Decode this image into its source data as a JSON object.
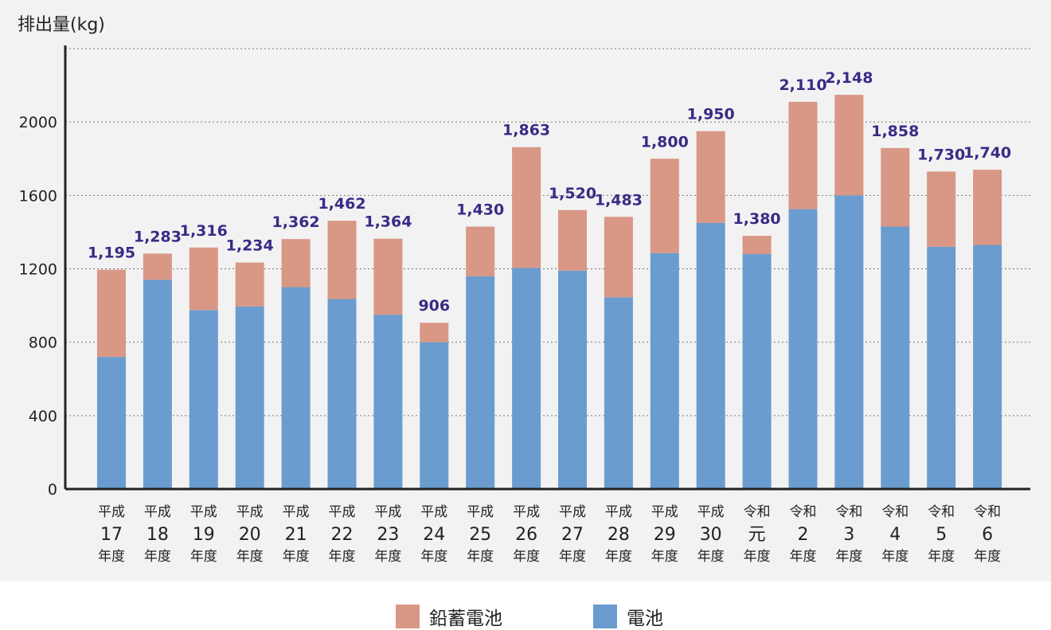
{
  "chart_data": {
    "type": "bar",
    "stacked": true,
    "ylabel": "排出量(kg)",
    "ylim": [
      0,
      2400
    ],
    "yticks": [
      0,
      400,
      800,
      1200,
      1600,
      2000
    ],
    "grid": true,
    "legend_position": "bottom",
    "categories": [
      {
        "line1": "平成",
        "line2": "17",
        "line3": "年度"
      },
      {
        "line1": "平成",
        "line2": "18",
        "line3": "年度"
      },
      {
        "line1": "平成",
        "line2": "19",
        "line3": "年度"
      },
      {
        "line1": "平成",
        "line2": "20",
        "line3": "年度"
      },
      {
        "line1": "平成",
        "line2": "21",
        "line3": "年度"
      },
      {
        "line1": "平成",
        "line2": "22",
        "line3": "年度"
      },
      {
        "line1": "平成",
        "line2": "23",
        "line3": "年度"
      },
      {
        "line1": "平成",
        "line2": "24",
        "line3": "年度"
      },
      {
        "line1": "平成",
        "line2": "25",
        "line3": "年度"
      },
      {
        "line1": "平成",
        "line2": "26",
        "line3": "年度"
      },
      {
        "line1": "平成",
        "line2": "27",
        "line3": "年度"
      },
      {
        "line1": "平成",
        "line2": "28",
        "line3": "年度"
      },
      {
        "line1": "平成",
        "line2": "29",
        "line3": "年度"
      },
      {
        "line1": "平成",
        "line2": "30",
        "line3": "年度"
      },
      {
        "line1": "令和",
        "line2": "元",
        "line3": "年度"
      },
      {
        "line1": "令和",
        "line2": "2",
        "line3": "年度"
      },
      {
        "line1": "令和",
        "line2": "3",
        "line3": "年度"
      },
      {
        "line1": "令和",
        "line2": "4",
        "line3": "年度"
      },
      {
        "line1": "令和",
        "line2": "5",
        "line3": "年度"
      },
      {
        "line1": "令和",
        "line2": "6",
        "line3": "年度"
      }
    ],
    "series": [
      {
        "name": "電池",
        "color": "#6a9ccf",
        "values": [
          720,
          1140,
          975,
          995,
          1100,
          1035,
          950,
          800,
          1160,
          1205,
          1190,
          1045,
          1285,
          1450,
          1280,
          1525,
          1600,
          1430,
          1320,
          1330
        ]
      },
      {
        "name": "鉛蓄電池",
        "color": "#d99785",
        "values": [
          475,
          143,
          341,
          239,
          262,
          427,
          414,
          106,
          270,
          658,
          330,
          438,
          515,
          500,
          100,
          585,
          548,
          428,
          410,
          410
        ]
      }
    ],
    "totals": [
      "1,195",
      "1,283",
      "1,316",
      "1,234",
      "1,362",
      "1,462",
      "1,364",
      "906",
      "1,430",
      "1,863",
      "1,520",
      "1,483",
      "1,800",
      "1,950",
      "1,380",
      "2,110",
      "2,148",
      "1,858",
      "1,730",
      "1,740"
    ],
    "total_label_color": "#3b2a86"
  },
  "legend": {
    "lead_label": "鉛蓄電池",
    "battery_label": "電池"
  }
}
